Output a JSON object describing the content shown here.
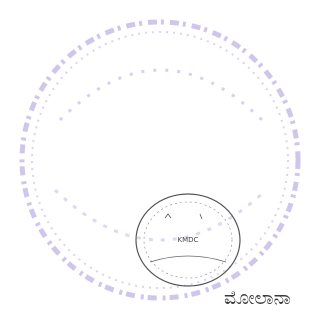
{
  "stamp": {
    "seal_text": "KMDC",
    "signature": "ಮೋಲಾನಾ"
  }
}
